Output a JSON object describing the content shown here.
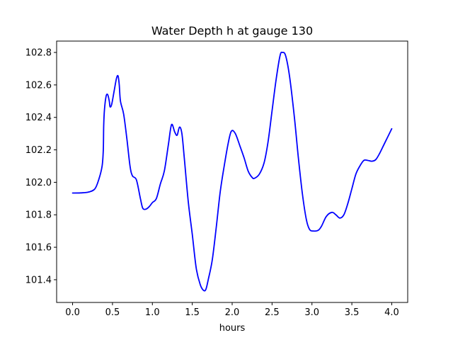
{
  "chart_data": {
    "type": "line",
    "title": "Water Depth h at gauge 130",
    "xlabel": "hours",
    "ylabel": "",
    "xlim": [
      -0.2,
      4.2
    ],
    "ylim": [
      101.26,
      102.87
    ],
    "xticks": [
      0.0,
      0.5,
      1.0,
      1.5,
      2.0,
      2.5,
      3.0,
      3.5,
      4.0
    ],
    "xtick_labels": [
      "0.0",
      "0.5",
      "1.0",
      "1.5",
      "2.0",
      "2.5",
      "3.0",
      "3.5",
      "4.0"
    ],
    "yticks": [
      101.4,
      101.6,
      101.8,
      102.0,
      102.2,
      102.4,
      102.6,
      102.8
    ],
    "ytick_labels": [
      "101.4",
      "101.6",
      "101.8",
      "102.0",
      "102.2",
      "102.4",
      "102.6",
      "102.8"
    ],
    "grid": false,
    "series": [
      {
        "color": "#0000ff",
        "points": [
          [
            0.0,
            101.934
          ],
          [
            0.1,
            101.935
          ],
          [
            0.2,
            101.94
          ],
          [
            0.28,
            101.96
          ],
          [
            0.33,
            102.02
          ],
          [
            0.37,
            102.1
          ],
          [
            0.385,
            102.2
          ],
          [
            0.39,
            102.35
          ],
          [
            0.4,
            102.45
          ],
          [
            0.42,
            102.53
          ],
          [
            0.44,
            102.54
          ],
          [
            0.46,
            102.5
          ],
          [
            0.47,
            102.465
          ],
          [
            0.49,
            102.48
          ],
          [
            0.52,
            102.56
          ],
          [
            0.55,
            102.64
          ],
          [
            0.57,
            102.655
          ],
          [
            0.585,
            102.6
          ],
          [
            0.6,
            102.5
          ],
          [
            0.64,
            102.42
          ],
          [
            0.68,
            102.27
          ],
          [
            0.72,
            102.1
          ],
          [
            0.75,
            102.04
          ],
          [
            0.8,
            102.015
          ],
          [
            0.85,
            101.9
          ],
          [
            0.88,
            101.84
          ],
          [
            0.92,
            101.835
          ],
          [
            0.96,
            101.85
          ],
          [
            1.0,
            101.875
          ],
          [
            1.05,
            101.9
          ],
          [
            1.1,
            101.99
          ],
          [
            1.15,
            102.07
          ],
          [
            1.2,
            102.23
          ],
          [
            1.24,
            102.355
          ],
          [
            1.28,
            102.31
          ],
          [
            1.31,
            102.29
          ],
          [
            1.34,
            102.34
          ],
          [
            1.37,
            102.3
          ],
          [
            1.4,
            102.15
          ],
          [
            1.45,
            101.88
          ],
          [
            1.5,
            101.68
          ],
          [
            1.55,
            101.47
          ],
          [
            1.6,
            101.37
          ],
          [
            1.64,
            101.335
          ],
          [
            1.67,
            101.34
          ],
          [
            1.7,
            101.4
          ],
          [
            1.75,
            101.52
          ],
          [
            1.8,
            101.72
          ],
          [
            1.85,
            101.94
          ],
          [
            1.9,
            102.1
          ],
          [
            1.95,
            102.24
          ],
          [
            1.99,
            102.315
          ],
          [
            2.04,
            102.3
          ],
          [
            2.1,
            102.22
          ],
          [
            2.15,
            102.15
          ],
          [
            2.2,
            102.07
          ],
          [
            2.25,
            102.03
          ],
          [
            2.28,
            102.025
          ],
          [
            2.34,
            102.05
          ],
          [
            2.4,
            102.12
          ],
          [
            2.45,
            102.25
          ],
          [
            2.5,
            102.44
          ],
          [
            2.55,
            102.63
          ],
          [
            2.6,
            102.78
          ],
          [
            2.63,
            102.8
          ],
          [
            2.67,
            102.78
          ],
          [
            2.72,
            102.65
          ],
          [
            2.78,
            102.4
          ],
          [
            2.83,
            102.15
          ],
          [
            2.88,
            101.93
          ],
          [
            2.93,
            101.77
          ],
          [
            2.97,
            101.71
          ],
          [
            3.02,
            101.7
          ],
          [
            3.08,
            101.705
          ],
          [
            3.12,
            101.73
          ],
          [
            3.18,
            101.79
          ],
          [
            3.25,
            101.815
          ],
          [
            3.3,
            101.8
          ],
          [
            3.35,
            101.78
          ],
          [
            3.4,
            101.8
          ],
          [
            3.45,
            101.87
          ],
          [
            3.5,
            101.96
          ],
          [
            3.55,
            102.05
          ],
          [
            3.6,
            102.1
          ],
          [
            3.65,
            102.135
          ],
          [
            3.7,
            102.135
          ],
          [
            3.75,
            102.13
          ],
          [
            3.8,
            102.14
          ],
          [
            3.85,
            102.18
          ],
          [
            3.9,
            102.23
          ],
          [
            3.95,
            102.28
          ],
          [
            4.0,
            102.33
          ]
        ]
      }
    ]
  }
}
